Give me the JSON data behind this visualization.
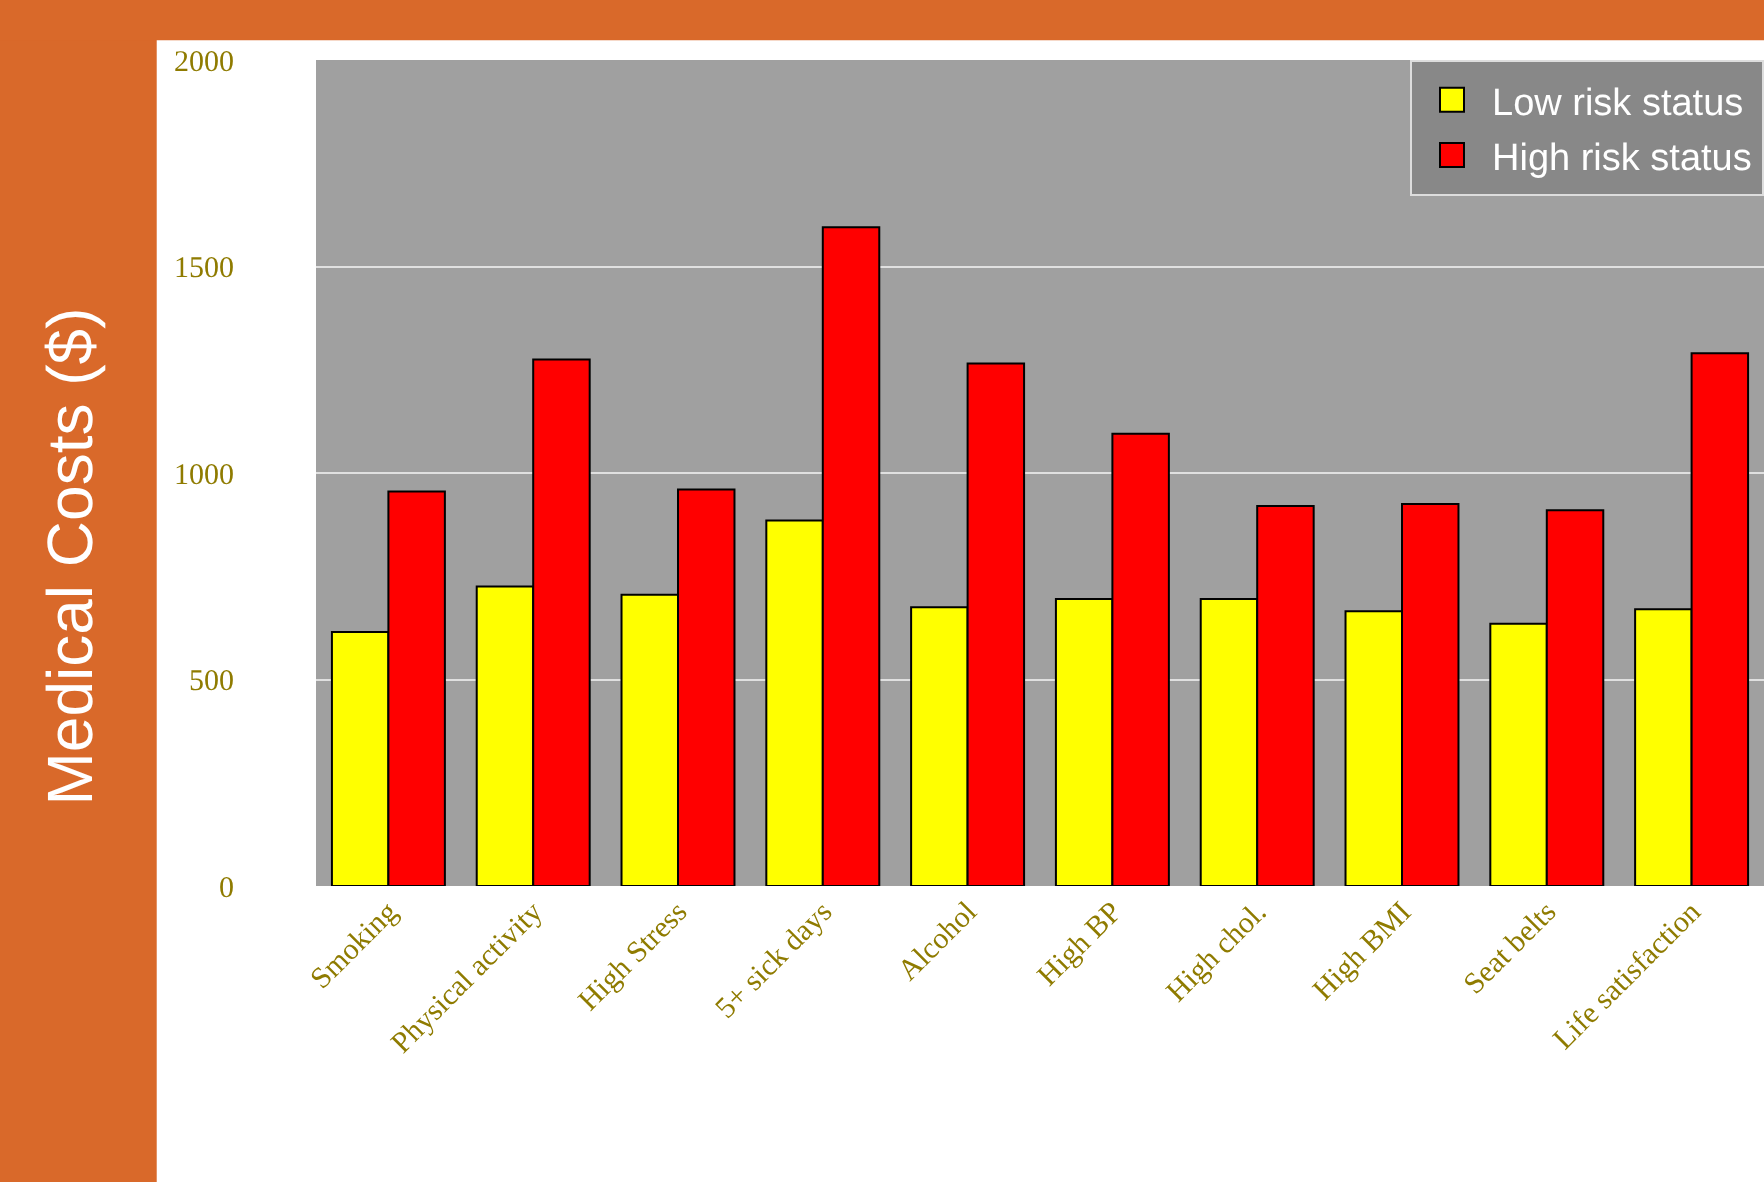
{
  "chart_data": {
    "type": "bar",
    "ylabel": "Medical Costs ($)",
    "categories": [
      "Smoking",
      "Physical activity",
      "High Stress",
      "5+ sick days",
      "Alcohol",
      "High BP",
      "High chol.",
      "High BMI",
      "Seat belts",
      "Life satisfaction"
    ],
    "series": [
      {
        "name": "Low risk status",
        "color": "#ffff00",
        "values": [
          615,
          725,
          705,
          885,
          675,
          695,
          695,
          665,
          635,
          670
        ]
      },
      {
        "name": "High risk status",
        "color": "#ff0000",
        "values": [
          955,
          1275,
          960,
          1595,
          1265,
          1095,
          920,
          925,
          910,
          1290
        ]
      }
    ],
    "ylim": [
      0,
      2000
    ],
    "yticks": [
      0,
      500,
      1000,
      1500,
      2000
    ],
    "grid": "y",
    "legend": "top right"
  }
}
